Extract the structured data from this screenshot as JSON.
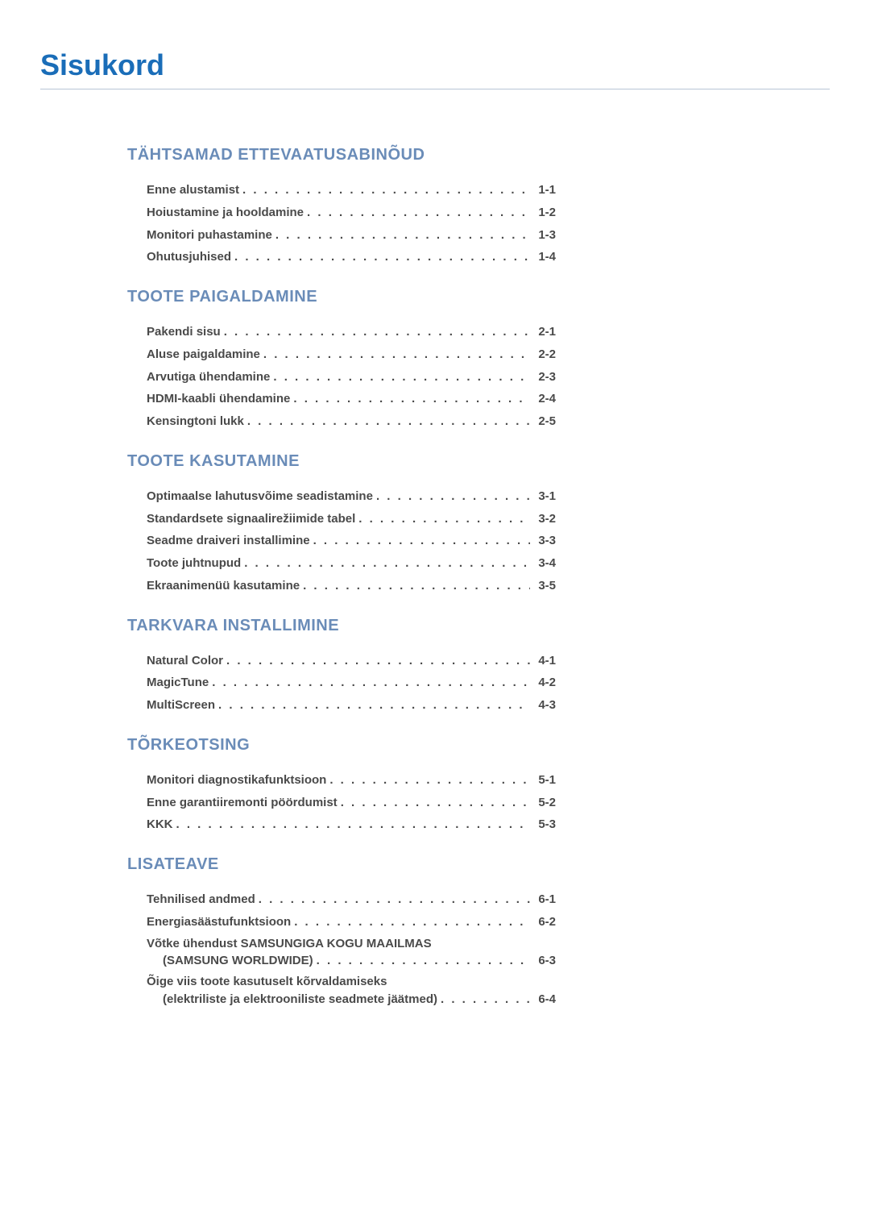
{
  "title": "Sisukord",
  "title_color": "#1a6db8",
  "body_text_color": "#4a4a4a",
  "underline_color": "#b8c5d6",
  "sections": [
    {
      "title": "TÄHTSAMAD ETTEVAATUSABINÕUD",
      "title_color": "#6a8cb8",
      "items": [
        {
          "label": "Enne alustamist",
          "page": "1-1"
        },
        {
          "label": "Hoiustamine ja hooldamine",
          "page": "1-2"
        },
        {
          "label": "Monitori puhastamine",
          "page": "1-3"
        },
        {
          "label": "Ohutusjuhised",
          "page": "1-4"
        }
      ]
    },
    {
      "title": "TOOTE PAIGALDAMINE",
      "title_color": "#6a8cb8",
      "items": [
        {
          "label": "Pakendi sisu",
          "page": "2-1"
        },
        {
          "label": "Aluse paigaldamine",
          "page": "2-2"
        },
        {
          "label": "Arvutiga ühendamine",
          "page": "2-3"
        },
        {
          "label": "HDMI-kaabli ühendamine",
          "page": "2-4"
        },
        {
          "label": "Kensingtoni lukk",
          "page": "2-5"
        }
      ]
    },
    {
      "title": "TOOTE KASUTAMINE",
      "title_color": "#6a8cb8",
      "items": [
        {
          "label": "Optimaalse lahutusvõime seadistamine",
          "page": "3-1"
        },
        {
          "label": "Standardsete signaalirežiimide tabel",
          "page": "3-2"
        },
        {
          "label": "Seadme draiveri installimine",
          "page": "3-3"
        },
        {
          "label": "Toote juhtnupud",
          "page": "3-4"
        },
        {
          "label": "Ekraanimenüü kasutamine",
          "page": "3-5"
        }
      ]
    },
    {
      "title": "TARKVARA INSTALLIMINE",
      "title_color": "#6a8cb8",
      "items": [
        {
          "label": "Natural Color",
          "page": "4-1"
        },
        {
          "label": "MagicTune",
          "page": "4-2"
        },
        {
          "label": "MultiScreen",
          "page": "4-3"
        }
      ]
    },
    {
      "title": "TÕRKEOTSING",
      "title_color": "#6a8cb8",
      "items": [
        {
          "label": "Monitori diagnostikafunktsioon",
          "page": "5-1"
        },
        {
          "label": "Enne garantiiremonti pöördumist",
          "page": "5-2"
        },
        {
          "label": "KKK",
          "page": "5-3"
        }
      ]
    },
    {
      "title": "LISATEAVE",
      "title_color": "#6a8cb8",
      "items": [
        {
          "label": "Tehnilised andmed",
          "page": "6-1"
        },
        {
          "label": "Energiasäästufunktsioon",
          "page": "6-2"
        },
        {
          "label": "Võtke ühendust SAMSUNGIGA KOGU MAAILMAS",
          "sublabel": "(SAMSUNG WORLDWIDE)",
          "page": "6-3"
        },
        {
          "label": "Õige viis toote kasutuselt kõrvaldamiseks",
          "sublabel": "(elektriliste ja elektrooniliste seadmete jäätmed)",
          "page": "6-4"
        }
      ]
    }
  ]
}
